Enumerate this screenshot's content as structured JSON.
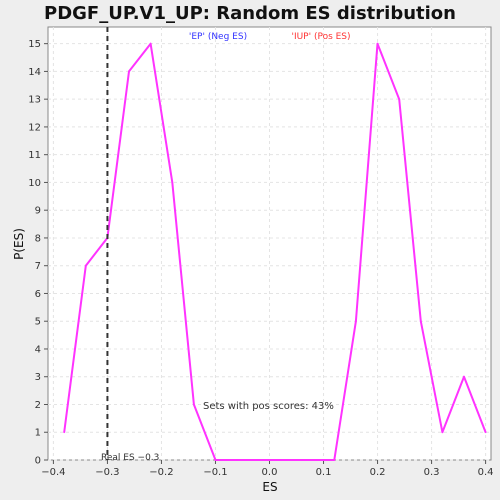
{
  "chart_data": {
    "type": "line",
    "title": "PDGF_UP.V1_UP: Random ES distribution",
    "xlabel": "ES",
    "ylabel": "P(ES)",
    "xlim": [
      -0.41,
      0.41
    ],
    "ylim": [
      0,
      15.6
    ],
    "x_ticks": [
      -0.4,
      -0.3,
      -0.2,
      -0.1,
      0.0,
      0.1,
      0.2,
      0.3,
      0.4
    ],
    "x_tick_labels": [
      "−0.4",
      "−0.3",
      "−0.2",
      "−0.1",
      "0.0",
      "0.1",
      "0.2",
      "0.3",
      "0.4"
    ],
    "y_ticks": [
      0,
      1,
      2,
      3,
      4,
      5,
      6,
      7,
      8,
      9,
      10,
      11,
      12,
      13,
      14,
      15
    ],
    "grid": true,
    "series": [
      {
        "color": "#ff33ff",
        "x": [
          -0.38,
          -0.34,
          -0.3,
          -0.26,
          -0.22,
          -0.18,
          -0.14,
          -0.1,
          -0.06,
          -0.02,
          0.02,
          0.06,
          0.1,
          0.12,
          0.16,
          0.2,
          0.24,
          0.28,
          0.32,
          0.36,
          0.4
        ],
        "y": [
          1,
          7,
          8,
          14,
          15,
          10,
          2,
          0,
          0,
          0,
          0,
          0,
          0,
          0,
          5,
          15,
          13,
          5,
          1,
          3,
          1
        ]
      }
    ],
    "legend": [
      {
        "label": "'EP' (Neg ES)",
        "color": "#3333ff"
      },
      {
        "label": "'IUP' (Pos ES)",
        "color": "#ff3333"
      }
    ],
    "legend_placement": "top",
    "real_es": {
      "value": -0.3,
      "label": "Real ES −0.3"
    },
    "annotation": "Sets with pos scores: 43%"
  }
}
